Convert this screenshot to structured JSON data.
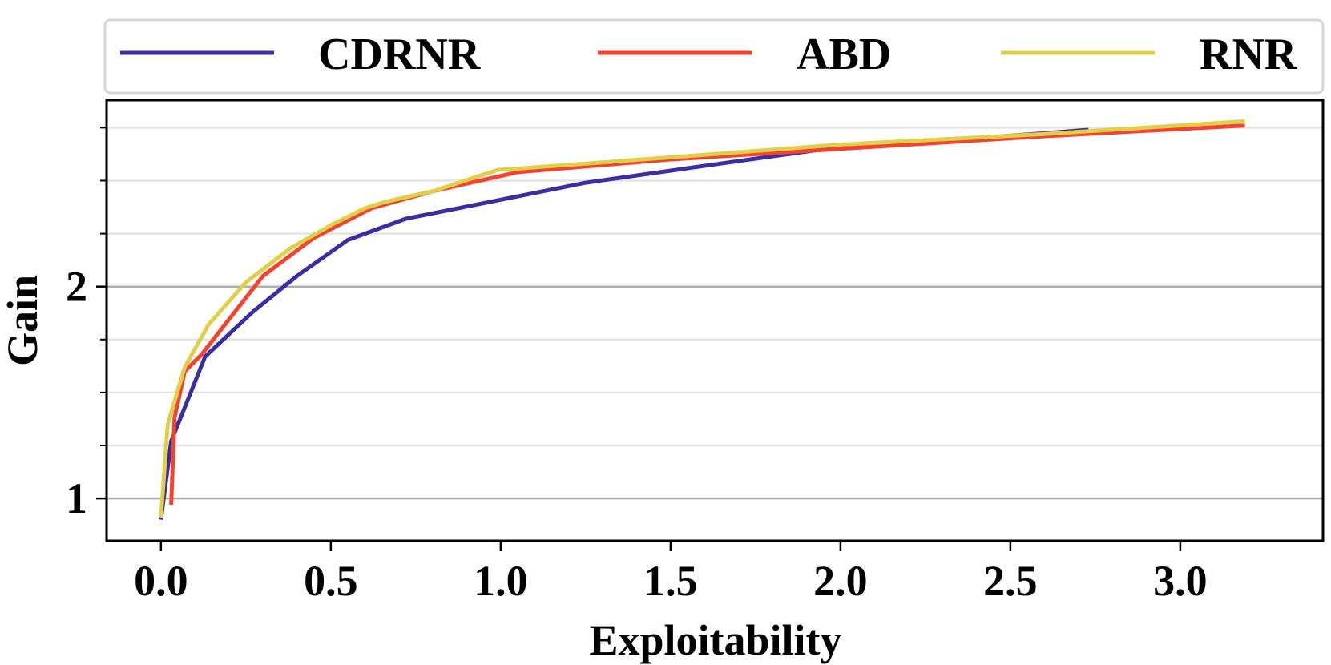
{
  "chart_data": {
    "type": "line",
    "title": "",
    "xlabel": "Exploitability",
    "ylabel": "Gain",
    "xlim": [
      -0.16,
      3.42
    ],
    "ylim": [
      0.8,
      2.88
    ],
    "xticks": [
      0.0,
      0.5,
      1.0,
      1.5,
      2.0,
      2.5,
      3.0
    ],
    "xtick_labels": [
      "0.0",
      "0.5",
      "1.0",
      "1.5",
      "2.0",
      "2.5",
      "3.0"
    ],
    "yticks_major": [
      1,
      2
    ],
    "ytick_labels": [
      "1",
      "2"
    ],
    "yticks_minor": [
      1.25,
      1.5,
      1.75,
      2.25,
      2.5,
      2.75
    ],
    "grid": "horizontal",
    "legend_position": "top, above plot, 3 columns",
    "series": [
      {
        "name": "CDRNR",
        "color": "#3a2ea5",
        "x": [
          0.0,
          0.03,
          0.13,
          0.27,
          0.4,
          0.55,
          0.72,
          1.0,
          1.25,
          1.6,
          2.0,
          2.15,
          2.4,
          2.73
        ],
        "y": [
          0.9,
          1.27,
          1.67,
          1.88,
          2.05,
          2.22,
          2.32,
          2.41,
          2.49,
          2.57,
          2.66,
          2.68,
          2.7,
          2.74
        ]
      },
      {
        "name": "ABD",
        "color": "#f5422e",
        "x": [
          0.03,
          0.04,
          0.07,
          0.12,
          0.3,
          0.45,
          0.62,
          0.8,
          1.05,
          1.5,
          2.0,
          2.6,
          3.19
        ],
        "y": [
          0.97,
          1.38,
          1.6,
          1.68,
          2.05,
          2.23,
          2.37,
          2.45,
          2.54,
          2.6,
          2.65,
          2.71,
          2.76
        ]
      },
      {
        "name": "RNR",
        "color": "#e0cf48",
        "x": [
          0.0,
          0.02,
          0.07,
          0.14,
          0.25,
          0.38,
          0.5,
          0.6,
          0.66,
          0.8,
          0.99,
          1.5,
          2.0,
          2.6,
          3.19
        ],
        "y": [
          0.91,
          1.35,
          1.62,
          1.82,
          2.02,
          2.18,
          2.29,
          2.37,
          2.4,
          2.45,
          2.55,
          2.61,
          2.67,
          2.72,
          2.78
        ]
      }
    ]
  }
}
